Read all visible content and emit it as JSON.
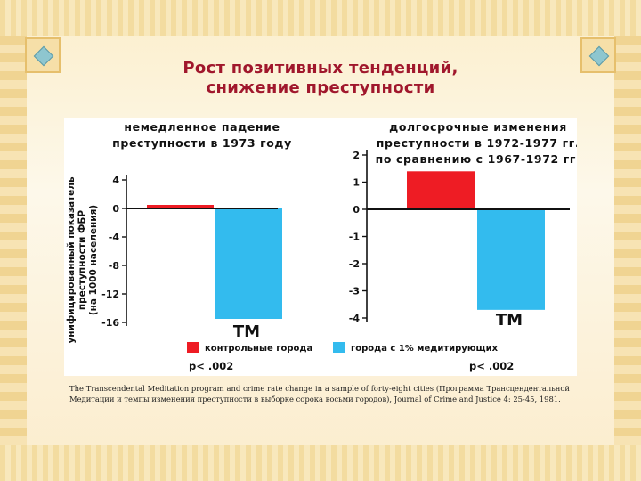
{
  "title": {
    "line1": "Рост позитивных тенденций,",
    "line2": "снижение преступности"
  },
  "colors": {
    "control": "#ee1c24",
    "tm": "#33bbee",
    "title": "#a0172c"
  },
  "ylabel": {
    "line1": "унифицированный показатель",
    "line2": "преступности ФБР",
    "line3": "(на 1000 населения)"
  },
  "chart_data": [
    {
      "type": "bar",
      "title_lines": [
        "немедленное падение",
        "преступности в 1973 году"
      ],
      "ylabel": "унифицированный показатель преступности ФБР (на 1000 населения)",
      "ylim": [
        -16,
        4
      ],
      "yticks": [
        "4",
        "0",
        "-4",
        "-8",
        "-12",
        "-16"
      ],
      "ytick_values": [
        4,
        0,
        -4,
        -8,
        -12,
        -16
      ],
      "categories": [
        "контрольные города",
        "города с 1% медитирующих"
      ],
      "series": [
        {
          "name": "контрольные города",
          "values": [
            0.5,
            null
          ]
        },
        {
          "name": "города с 1% медитирующих",
          "values": [
            null,
            -15.5
          ]
        }
      ],
      "bar_label": "TM",
      "pvalue": "p< .002"
    },
    {
      "type": "bar",
      "title_lines": [
        "долгосрочные изменения",
        "преступности в 1972-1977 гг.",
        "по сравнению с 1967-1972 гг."
      ],
      "ylim": [
        -4,
        2
      ],
      "yticks": [
        "2",
        "1",
        "0",
        "-1",
        "-2",
        "-3",
        "-4"
      ],
      "ytick_values": [
        2,
        1,
        0,
        -1,
        -2,
        -3,
        -4
      ],
      "categories": [
        "контрольные города",
        "города с 1% медитирующих"
      ],
      "series": [
        {
          "name": "контрольные города",
          "values": [
            1.4,
            null
          ]
        },
        {
          "name": "города с 1% медитирующих",
          "values": [
            null,
            -3.7
          ]
        }
      ],
      "bar_label": "TM",
      "pvalue": "p< .002"
    }
  ],
  "legend": {
    "control": "контрольные города",
    "tm": "города с 1% медитирующих"
  },
  "caption": "The Transcendental Meditation program and crime rate change in a sample of forty-eight cities (Программа Трансцендентальной Медитации и темпы изменения преступности в выборке сорока восьми городов), Journal of Crime and Justice 4: 25-45, 1981."
}
